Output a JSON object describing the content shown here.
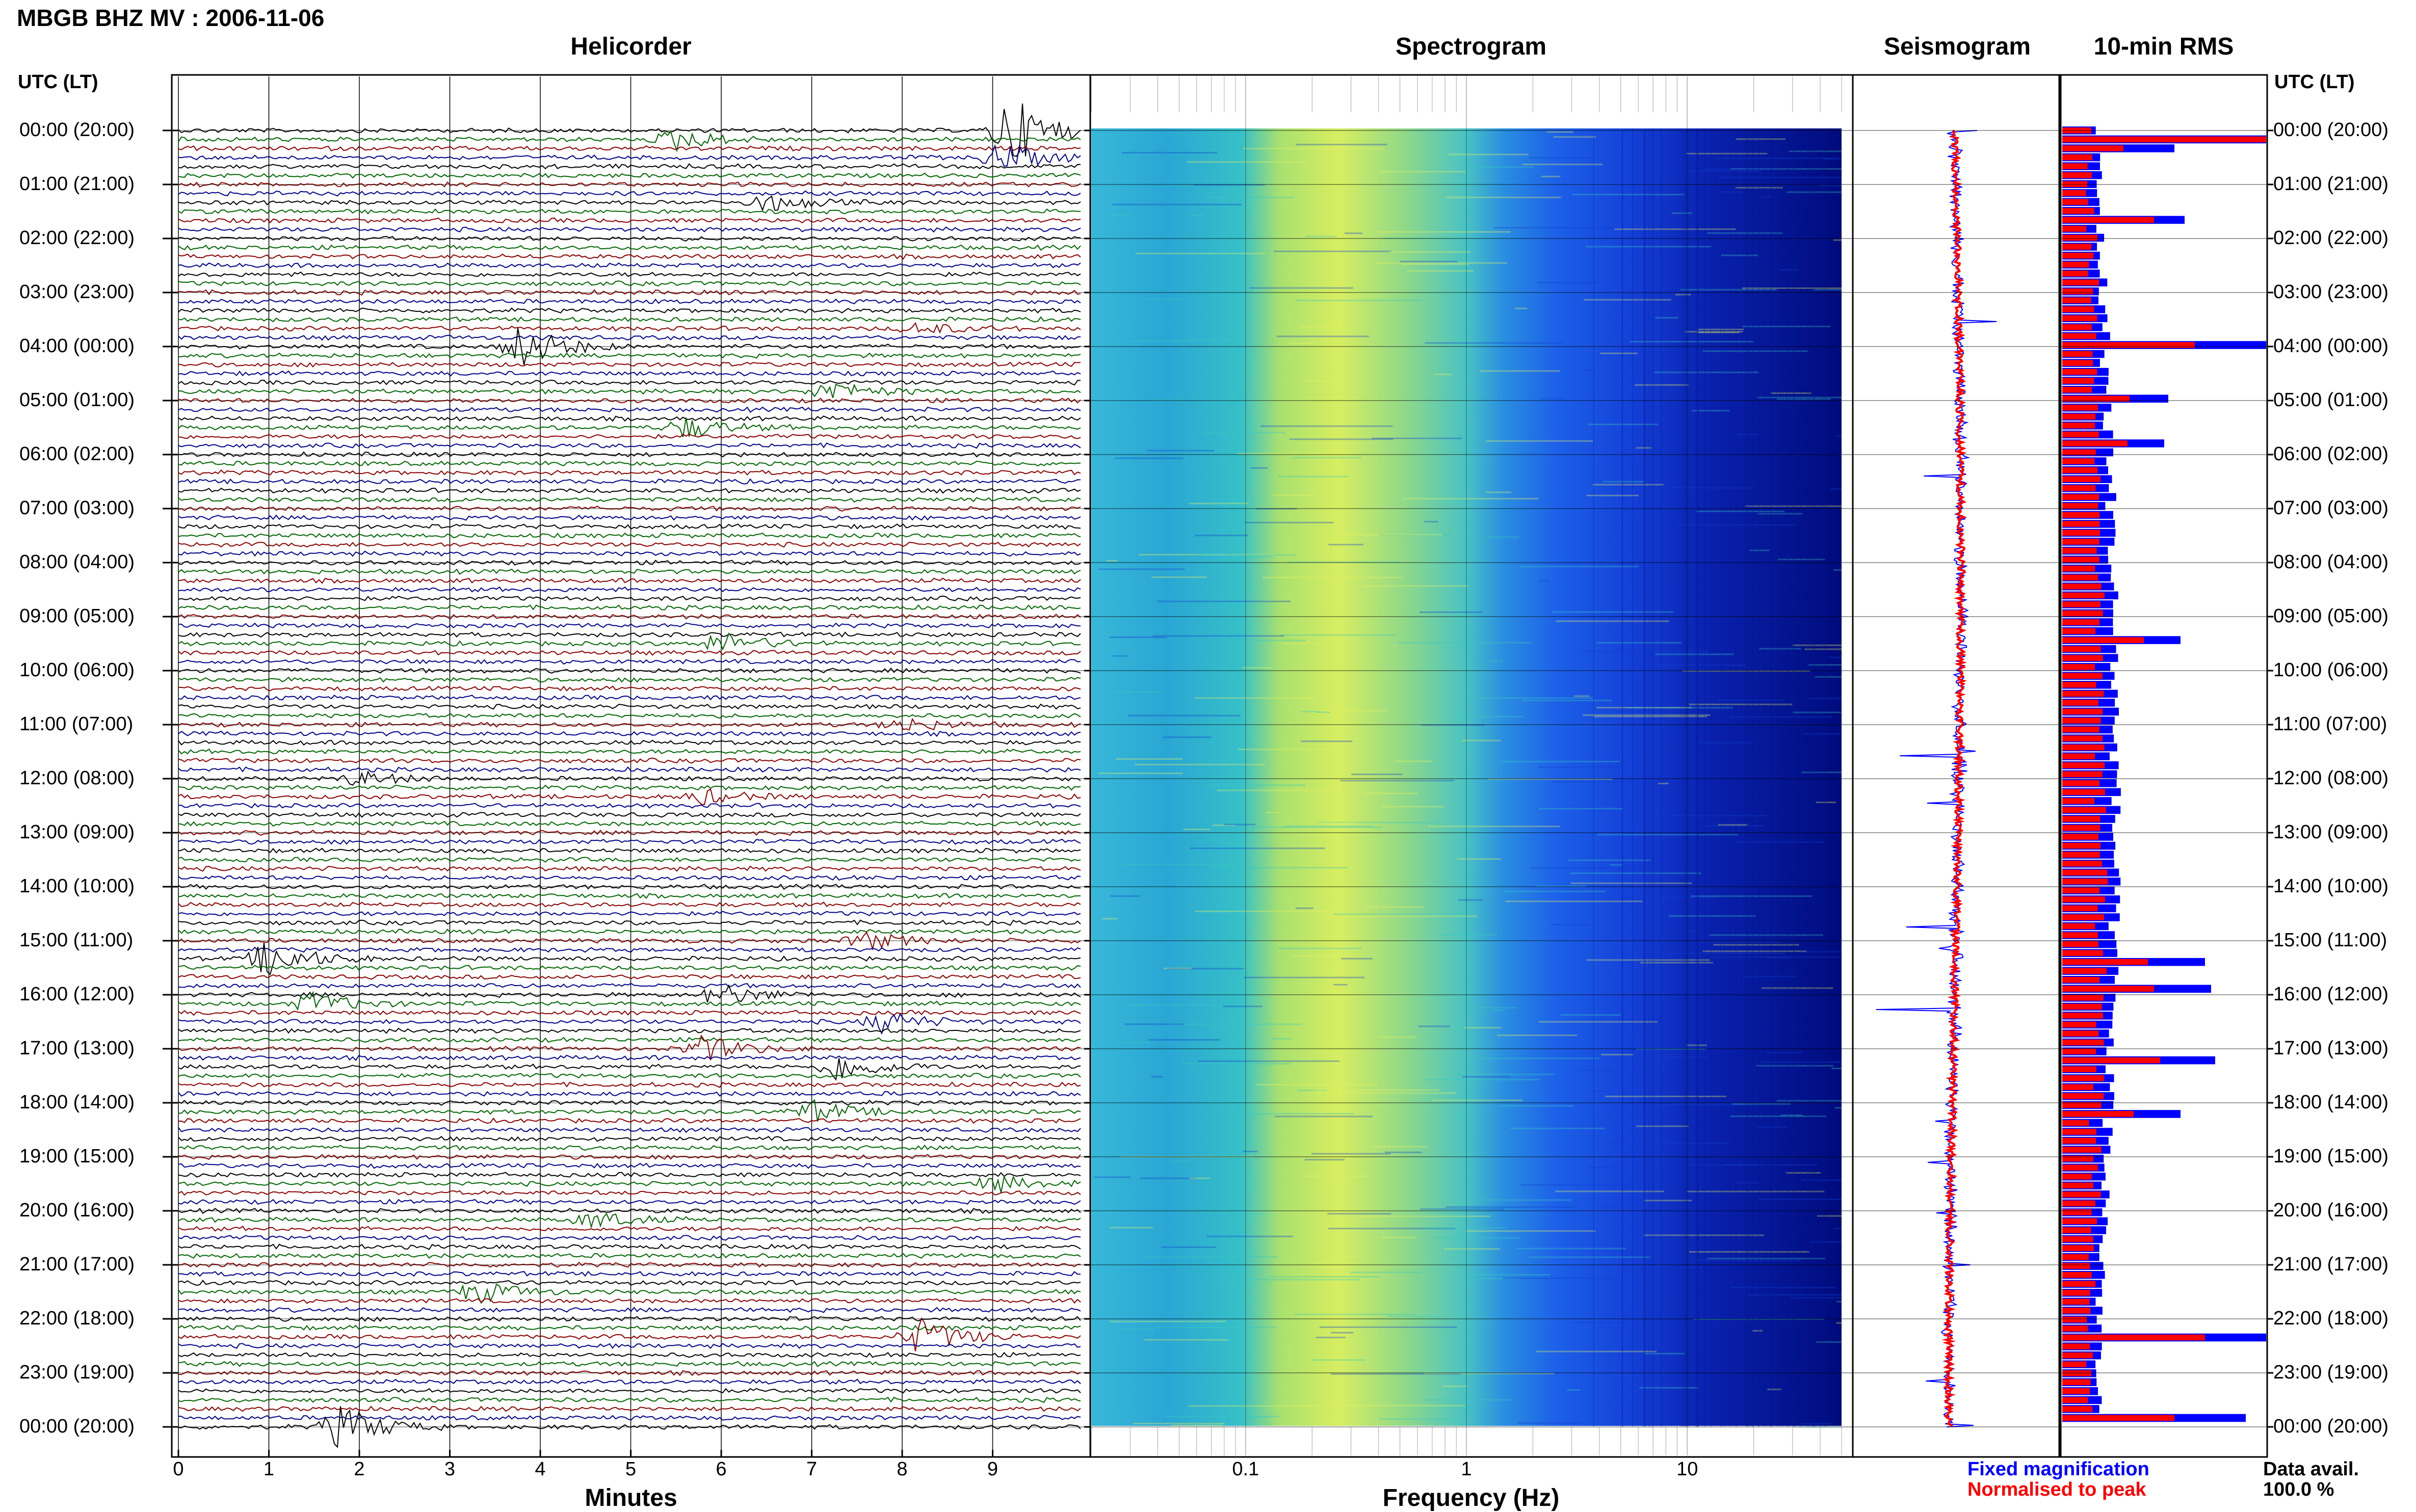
{
  "header": {
    "title": "MBGB BHZ MV : 2006-11-06"
  },
  "panels": {
    "helicorder": "Helicorder",
    "spectrogram": "Spectrogram",
    "seismogram": "Seismogram",
    "rms": "10-min RMS"
  },
  "utc_label": "UTC (LT)",
  "time_labels": [
    "00:00 (20:00)",
    "01:00 (21:00)",
    "02:00 (22:00)",
    "03:00 (23:00)",
    "04:00 (00:00)",
    "05:00 (01:00)",
    "06:00 (02:00)",
    "07:00 (03:00)",
    "08:00 (04:00)",
    "09:00 (05:00)",
    "10:00 (06:00)",
    "11:00 (07:00)",
    "12:00 (08:00)",
    "13:00 (09:00)",
    "14:00 (10:00)",
    "15:00 (11:00)",
    "16:00 (12:00)",
    "17:00 (13:00)",
    "18:00 (14:00)",
    "19:00 (15:00)",
    "20:00 (16:00)",
    "21:00 (17:00)",
    "22:00 (18:00)",
    "23:00 (19:00)",
    "00:00 (20:00)"
  ],
  "footer": {
    "legend_fixed": "Fixed magnification",
    "legend_normalised": "Normalised to peak",
    "data_avail_label": "Data avail.",
    "data_avail_value": "100.0 %"
  },
  "colors": {
    "fixed": "#0000ff",
    "normalised": "#ff0000",
    "trace_cycle": [
      "#000000",
      "#006400",
      "#8b0000",
      "#00008b"
    ]
  },
  "chart_data": [
    {
      "type": "line",
      "name": "helicorder",
      "title": "Helicorder",
      "xlabel": "Minutes",
      "x_ticks": [
        "0",
        "1",
        "2",
        "3",
        "4",
        "5",
        "6",
        "7",
        "8",
        "9"
      ],
      "xlim": [
        0,
        10
      ],
      "traces_per_hour": 6,
      "rows": 145,
      "events": [
        {
          "hour": 0.0,
          "minute": 9.2,
          "amp": 5,
          "color": "#8b0000"
        },
        {
          "hour": 0.2,
          "minute": 5.5,
          "amp": 1.5,
          "color": "#006400"
        },
        {
          "hour": 0.5,
          "minute": 9.1,
          "amp": 2,
          "color": "#00008b"
        },
        {
          "hour": 1.3,
          "minute": 6.5,
          "amp": 1.2,
          "color": "#8b0000"
        },
        {
          "hour": 3.7,
          "minute": 8.2,
          "amp": 0.8,
          "color": "#00008b"
        },
        {
          "hour": 4.0,
          "minute": 3.8,
          "amp": 3,
          "color": "#000000"
        },
        {
          "hour": 4.8,
          "minute": 7.2,
          "amp": 1.5,
          "color": "#8b0000"
        },
        {
          "hour": 5.5,
          "minute": 5.6,
          "amp": 1.5,
          "color": "#00008b"
        },
        {
          "hour": 9.5,
          "minute": 6.0,
          "amp": 1.5,
          "color": "#8b0000"
        },
        {
          "hour": 11.0,
          "minute": 8.0,
          "amp": 1,
          "color": "#00008b"
        },
        {
          "hour": 12.0,
          "minute": 2.0,
          "amp": 1,
          "color": "#000000"
        },
        {
          "hour": 12.3,
          "minute": 5.8,
          "amp": 1,
          "color": "#00008b"
        },
        {
          "hour": 15.3,
          "minute": 1.0,
          "amp": 2.5,
          "color": "#000000"
        },
        {
          "hour": 15.0,
          "minute": 7.6,
          "amp": 1.2,
          "color": "#000000"
        },
        {
          "hour": 16.0,
          "minute": 6.0,
          "amp": 1.5,
          "color": "#000000"
        },
        {
          "hour": 16.2,
          "minute": 1.5,
          "amp": 1.5,
          "color": "#8b0000"
        },
        {
          "hour": 16.5,
          "minute": 7.8,
          "amp": 1.5,
          "color": "#006400"
        },
        {
          "hour": 17.0,
          "minute": 5.8,
          "amp": 1.8,
          "color": "#006400"
        },
        {
          "hour": 17.3,
          "minute": 7.3,
          "amp": 2,
          "color": "#000000"
        },
        {
          "hour": 18.2,
          "minute": 7.0,
          "amp": 1.5,
          "color": "#8b0000"
        },
        {
          "hour": 19.5,
          "minute": 9.0,
          "amp": 1.2,
          "color": "#8b0000"
        },
        {
          "hour": 20.2,
          "minute": 4.6,
          "amp": 1.2,
          "color": "#00008b"
        },
        {
          "hour": 21.5,
          "minute": 3.3,
          "amp": 1.5,
          "color": "#8b0000"
        },
        {
          "hour": 22.3,
          "minute": 8.2,
          "amp": 2.5,
          "color": "#00008b"
        },
        {
          "hour": 24.0,
          "minute": 1.8,
          "amp": 3,
          "color": "#006400"
        }
      ]
    },
    {
      "type": "heatmap",
      "name": "spectrogram",
      "title": "Spectrogram",
      "xlabel": "Frequency (Hz)",
      "x_scale": "log",
      "x_ticks": [
        "0.1",
        "1",
        "10"
      ],
      "xlim": [
        0.02,
        50
      ],
      "ylim": [
        0,
        24
      ]
    },
    {
      "type": "line",
      "name": "seismogram",
      "title": "Seismogram",
      "series": [
        {
          "name": "Fixed magnification",
          "color": "#0000ff"
        },
        {
          "name": "Normalised to peak",
          "color": "#ff0000"
        }
      ]
    },
    {
      "type": "bar",
      "name": "rms",
      "title": "10-min RMS",
      "bins": 145,
      "series": [
        {
          "name": "Fixed magnification",
          "color": "#0000ff"
        },
        {
          "name": "Normalised to peak",
          "color": "#ff0000"
        }
      ],
      "peaks": [
        {
          "hour": 0.1,
          "fixed": 1.0,
          "norm": 1.0
        },
        {
          "hour": 0.3,
          "fixed": 0.55,
          "norm": 0.3
        },
        {
          "hour": 1.6,
          "fixed": 0.6,
          "norm": 0.45
        },
        {
          "hour": 4.0,
          "fixed": 1.0,
          "norm": 0.65
        },
        {
          "hour": 5.0,
          "fixed": 0.52,
          "norm": 0.33
        },
        {
          "hour": 5.8,
          "fixed": 0.5,
          "norm": 0.32
        },
        {
          "hour": 9.5,
          "fixed": 0.58,
          "norm": 0.4
        },
        {
          "hour": 15.5,
          "fixed": 0.7,
          "norm": 0.42
        },
        {
          "hour": 16.0,
          "fixed": 0.73,
          "norm": 0.45
        },
        {
          "hour": 17.3,
          "fixed": 0.75,
          "norm": 0.48
        },
        {
          "hour": 18.3,
          "fixed": 0.58,
          "norm": 0.35
        },
        {
          "hour": 22.5,
          "fixed": 1.0,
          "norm": 0.7
        },
        {
          "hour": 24.0,
          "fixed": 0.9,
          "norm": 0.55
        }
      ]
    }
  ]
}
